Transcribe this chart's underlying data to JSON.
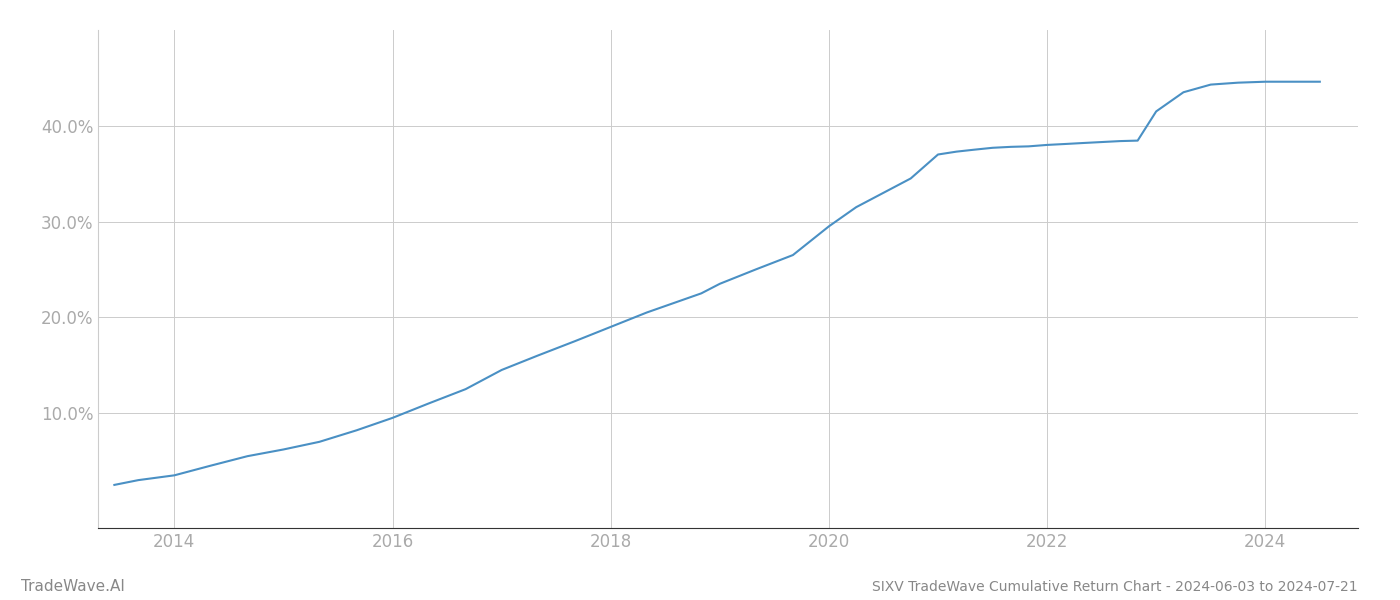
{
  "title": "SIXV TradeWave Cumulative Return Chart - 2024-06-03 to 2024-07-21",
  "watermark": "TradeWave.AI",
  "line_color": "#4a90c4",
  "background_color": "#ffffff",
  "grid_color": "#cccccc",
  "x_values": [
    2013.45,
    2013.67,
    2014.0,
    2014.33,
    2014.67,
    2015.0,
    2015.33,
    2015.67,
    2016.0,
    2016.33,
    2016.67,
    2017.0,
    2017.33,
    2017.67,
    2018.0,
    2018.33,
    2018.58,
    2018.83,
    2019.0,
    2019.33,
    2019.67,
    2020.0,
    2020.25,
    2020.5,
    2020.75,
    2021.0,
    2021.17,
    2021.33,
    2021.5,
    2021.67,
    2021.83,
    2022.0,
    2022.17,
    2022.33,
    2022.5,
    2022.67,
    2022.83,
    2023.0,
    2023.25,
    2023.5,
    2023.75,
    2024.0,
    2024.25,
    2024.5
  ],
  "y_values": [
    2.5,
    3.0,
    3.5,
    4.5,
    5.5,
    6.2,
    7.0,
    8.2,
    9.5,
    11.0,
    12.5,
    14.5,
    16.0,
    17.5,
    19.0,
    20.5,
    21.5,
    22.5,
    23.5,
    25.0,
    26.5,
    29.5,
    31.5,
    33.0,
    34.5,
    37.0,
    37.3,
    37.5,
    37.7,
    37.8,
    37.85,
    38.0,
    38.1,
    38.2,
    38.3,
    38.4,
    38.45,
    41.5,
    43.5,
    44.3,
    44.5,
    44.6,
    44.6,
    44.6
  ],
  "xlim": [
    2013.3,
    2024.85
  ],
  "ylim": [
    -2,
    50
  ],
  "yticks": [
    10.0,
    20.0,
    30.0,
    40.0
  ],
  "xticks": [
    2014,
    2016,
    2018,
    2020,
    2022,
    2024
  ],
  "tick_color": "#aaaaaa",
  "tick_fontsize": 12,
  "title_fontsize": 10,
  "watermark_fontsize": 11,
  "line_width": 1.5
}
